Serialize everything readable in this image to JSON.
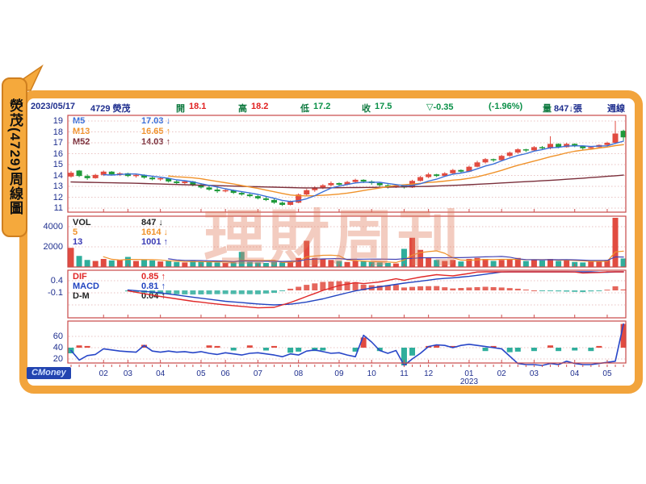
{
  "page_label": "熒茂(4729)周線圖",
  "watermark": "理財周刊",
  "logo": "CMoney",
  "header": {
    "date": "2023/05/17",
    "symbol": "4729 熒茂",
    "items": [
      {
        "label": "開",
        "value": "18.1",
        "vc": "#e02020"
      },
      {
        "label": "高",
        "value": "18.2",
        "vc": "#e02020"
      },
      {
        "label": "低",
        "value": "17.2",
        "vc": "#0a9048"
      },
      {
        "label": "收",
        "value": "17.5",
        "vc": "#0a9048"
      }
    ],
    "change": "▽-0.35",
    "change_pct": "(-1.96%)",
    "volume_label": "量",
    "volume_value": "847↓張",
    "mode": "週線"
  },
  "main_panel": {
    "legend": [
      {
        "name": "M5",
        "value": "17.03 ↓",
        "color": "#3a6fd8"
      },
      {
        "name": "M13",
        "value": "16.65 ↑",
        "color": "#f0922a"
      },
      {
        "name": "M52",
        "value": "14.03 ↑",
        "color": "#7a2e3a"
      }
    ],
    "y_ticks": [
      19,
      18,
      17,
      16,
      15,
      14,
      13,
      12,
      11
    ]
  },
  "volume_panel": {
    "legend": [
      {
        "name": "VOL",
        "value": "847 ↓",
        "color": "#222222"
      },
      {
        "name": "5",
        "value": "1614 ↓",
        "color": "#f0922a"
      },
      {
        "name": "13",
        "value": "1001 ↑",
        "color": "#3a3ab4"
      }
    ],
    "y_ticks": [
      4000,
      2000
    ]
  },
  "macd_panel": {
    "legend": [
      {
        "name": "DIF",
        "value": "0.85 ↑",
        "color": "#e02828"
      },
      {
        "name": "MACD",
        "value": "0.81 ↑",
        "color": "#2244c0"
      },
      {
        "name": "D-M",
        "value": "0.04 ↑",
        "color": "#222222"
      }
    ],
    "y_ticks": [
      0.4,
      -0.1
    ]
  },
  "osc_panel": {
    "y_ticks": [
      60,
      40,
      20
    ]
  },
  "x_axis": {
    "labels": [
      "02",
      "03",
      "04",
      "05",
      "06",
      "07",
      "08",
      "09",
      "10",
      "11",
      "12",
      "01",
      "02",
      "03",
      "04",
      "05"
    ],
    "year_label": "2023",
    "year_under_index": 11
  },
  "colors": {
    "up": "#e14b40",
    "down": "#1f9a3a",
    "teal": "#2fae9c",
    "ma5": "#3a6fd8",
    "ma13": "#f0922a",
    "ma52": "#7a2e3a",
    "vol5": "#f0922a",
    "vol13": "#4444b4",
    "dif": "#e02828",
    "macd": "#2244c0",
    "osc": "#2846c8",
    "border": "#c84848",
    "grid": "#e8c2c2",
    "tick": "#d05050",
    "frame": "#f2a43c"
  },
  "chart_data": {
    "type": "candlestick-multi-panel",
    "title": "4729 熒茂 weekly chart 2022/01 - 2023/05",
    "month_weeks": [
      5,
      8,
      12,
      17,
      20,
      24,
      29,
      34,
      38,
      42,
      45,
      50,
      54,
      58,
      63,
      67
    ],
    "candles": [
      [
        13.9,
        14.4,
        13.8,
        14.25
      ],
      [
        14.45,
        14.5,
        13.85,
        13.95
      ],
      [
        13.95,
        14.1,
        13.6,
        13.75
      ],
      [
        13.75,
        14.15,
        13.7,
        14.05
      ],
      [
        14.05,
        14.45,
        13.95,
        14.35
      ],
      [
        14.35,
        14.4,
        14.0,
        14.1
      ],
      [
        14.1,
        14.3,
        13.95,
        14.2
      ],
      [
        14.2,
        14.25,
        13.85,
        13.95
      ],
      [
        13.95,
        14.15,
        13.8,
        14.05
      ],
      [
        14.05,
        14.1,
        13.7,
        13.8
      ],
      [
        13.8,
        13.95,
        13.55,
        13.65
      ],
      [
        13.65,
        13.85,
        13.5,
        13.75
      ],
      [
        13.75,
        13.8,
        13.35,
        13.45
      ],
      [
        13.45,
        13.6,
        13.2,
        13.3
      ],
      [
        13.3,
        13.55,
        13.2,
        13.45
      ],
      [
        13.45,
        13.5,
        13.0,
        13.1
      ],
      [
        13.1,
        13.3,
        12.8,
        12.9
      ],
      [
        12.9,
        13.05,
        12.6,
        12.7
      ],
      [
        12.7,
        12.9,
        12.4,
        12.55
      ],
      [
        12.55,
        12.8,
        12.45,
        12.65
      ],
      [
        12.65,
        12.7,
        12.3,
        12.4
      ],
      [
        12.4,
        12.55,
        12.15,
        12.25
      ],
      [
        12.25,
        12.4,
        12.0,
        12.1
      ],
      [
        12.1,
        12.2,
        11.8,
        11.9
      ],
      [
        11.9,
        12.05,
        11.65,
        11.75
      ],
      [
        11.75,
        11.85,
        11.4,
        11.5
      ],
      [
        11.5,
        11.6,
        11.2,
        11.3
      ],
      [
        11.3,
        11.7,
        11.25,
        11.6
      ],
      [
        11.5,
        12.35,
        11.45,
        12.25
      ],
      [
        12.25,
        12.75,
        12.1,
        12.65
      ],
      [
        12.65,
        13.0,
        12.5,
        12.9
      ],
      [
        12.9,
        13.2,
        12.75,
        13.1
      ],
      [
        13.1,
        13.45,
        13.0,
        13.3
      ],
      [
        13.3,
        13.35,
        13.0,
        13.15
      ],
      [
        13.15,
        13.5,
        13.1,
        13.4
      ],
      [
        13.4,
        13.7,
        13.3,
        13.6
      ],
      [
        13.6,
        13.65,
        13.3,
        13.45
      ],
      [
        13.45,
        13.55,
        13.15,
        13.3
      ],
      [
        13.3,
        13.4,
        13.0,
        13.1
      ],
      [
        13.1,
        13.2,
        12.8,
        12.9
      ],
      [
        12.9,
        13.15,
        12.85,
        13.05
      ],
      [
        13.05,
        13.1,
        12.8,
        12.9
      ],
      [
        12.9,
        13.6,
        12.85,
        13.5
      ],
      [
        13.5,
        13.95,
        13.45,
        13.85
      ],
      [
        13.85,
        14.25,
        13.75,
        14.1
      ],
      [
        14.1,
        14.15,
        13.85,
        13.95
      ],
      [
        13.95,
        14.3,
        13.9,
        14.2
      ],
      [
        14.2,
        14.6,
        14.1,
        14.5
      ],
      [
        14.5,
        14.55,
        14.25,
        14.35
      ],
      [
        14.35,
        14.9,
        14.3,
        14.8
      ],
      [
        14.8,
        15.35,
        14.75,
        15.2
      ],
      [
        15.2,
        15.6,
        15.1,
        15.5
      ],
      [
        15.5,
        15.55,
        15.25,
        15.4
      ],
      [
        15.4,
        15.9,
        15.35,
        15.8
      ],
      [
        15.8,
        16.2,
        15.7,
        16.1
      ],
      [
        16.1,
        16.5,
        16.0,
        16.4
      ],
      [
        16.4,
        16.45,
        16.15,
        16.3
      ],
      [
        16.3,
        16.7,
        16.2,
        16.6
      ],
      [
        16.6,
        16.7,
        16.35,
        16.5
      ],
      [
        16.5,
        17.6,
        16.4,
        16.9
      ],
      [
        16.9,
        16.95,
        16.5,
        16.6
      ],
      [
        16.6,
        17.0,
        16.55,
        16.9
      ],
      [
        16.9,
        16.95,
        16.6,
        16.7
      ],
      [
        16.7,
        16.75,
        16.35,
        16.5
      ],
      [
        16.5,
        16.7,
        16.4,
        16.6
      ],
      [
        16.6,
        16.85,
        16.5,
        16.8
      ],
      [
        16.8,
        17.1,
        16.7,
        17.0
      ],
      [
        17.0,
        19.0,
        16.9,
        17.85
      ],
      [
        18.1,
        18.2,
        17.2,
        17.5
      ]
    ],
    "volumes": [
      1900,
      1100,
      700,
      600,
      800,
      650,
      700,
      1000,
      600,
      700,
      650,
      550,
      600,
      500,
      450,
      600,
      550,
      500,
      450,
      400,
      450,
      1500,
      500,
      450,
      400,
      500,
      450,
      600,
      900,
      2600,
      900,
      800,
      700,
      600,
      500,
      600,
      550,
      500,
      450,
      400,
      350,
      1800,
      2900,
      1700,
      900,
      700,
      600,
      700,
      550,
      800,
      900,
      800,
      600,
      700,
      800,
      900,
      600,
      700,
      650,
      800,
      600,
      700,
      500,
      450,
      550,
      600,
      700,
      5200,
      847
    ],
    "m52_points": [
      [
        1,
        13.4
      ],
      [
        8,
        13.3
      ],
      [
        15,
        13.15
      ],
      [
        22,
        13.0
      ],
      [
        30,
        12.85
      ],
      [
        38,
        12.9
      ],
      [
        45,
        13.0
      ],
      [
        50,
        13.15
      ],
      [
        55,
        13.35
      ],
      [
        60,
        13.55
      ],
      [
        64,
        13.75
      ],
      [
        69,
        14.03
      ]
    ],
    "dif_points": [
      [
        8,
        -0.02
      ],
      [
        12,
        -0.25
      ],
      [
        16,
        -0.45
      ],
      [
        20,
        -0.6
      ],
      [
        24,
        -0.72
      ],
      [
        26,
        -0.7
      ],
      [
        28,
        -0.5
      ],
      [
        30,
        -0.25
      ],
      [
        32,
        0.0
      ],
      [
        34,
        0.2
      ],
      [
        36,
        0.32
      ],
      [
        37,
        0.28
      ],
      [
        39,
        0.35
      ],
      [
        41,
        0.48
      ],
      [
        42,
        0.42
      ],
      [
        44,
        0.55
      ],
      [
        46,
        0.65
      ],
      [
        48,
        0.6
      ],
      [
        50,
        0.7
      ],
      [
        52,
        0.82
      ],
      [
        54,
        0.88
      ],
      [
        56,
        0.92
      ],
      [
        58,
        0.9
      ],
      [
        60,
        0.86
      ],
      [
        62,
        0.8
      ],
      [
        64,
        0.72
      ],
      [
        66,
        0.74
      ],
      [
        67,
        0.78
      ],
      [
        68,
        0.95
      ],
      [
        69,
        0.85
      ]
    ],
    "macd_points": [
      [
        8,
        0.02
      ],
      [
        12,
        -0.1
      ],
      [
        16,
        -0.28
      ],
      [
        20,
        -0.45
      ],
      [
        24,
        -0.56
      ],
      [
        26,
        -0.6
      ],
      [
        28,
        -0.57
      ],
      [
        30,
        -0.48
      ],
      [
        32,
        -0.35
      ],
      [
        34,
        -0.18
      ],
      [
        36,
        -0.02
      ],
      [
        38,
        0.1
      ],
      [
        40,
        0.2
      ],
      [
        42,
        0.3
      ],
      [
        44,
        0.38
      ],
      [
        46,
        0.47
      ],
      [
        48,
        0.52
      ],
      [
        50,
        0.58
      ],
      [
        52,
        0.67
      ],
      [
        54,
        0.76
      ],
      [
        56,
        0.85
      ],
      [
        58,
        0.9
      ],
      [
        60,
        0.89
      ],
      [
        62,
        0.85
      ],
      [
        64,
        0.79
      ],
      [
        66,
        0.75
      ],
      [
        67,
        0.75
      ],
      [
        68,
        0.78
      ],
      [
        69,
        0.81
      ]
    ],
    "osc_line": [
      35,
      18,
      26,
      28,
      38,
      36,
      34,
      33,
      32,
      44,
      34,
      32,
      34,
      32,
      33,
      31,
      33,
      30,
      28,
      31,
      29,
      27,
      30,
      31,
      29,
      27,
      24,
      29,
      27,
      34,
      36,
      33,
      30,
      31,
      27,
      24,
      62,
      50,
      35,
      30,
      35,
      8,
      20,
      30,
      42,
      45,
      44,
      40,
      44,
      46,
      44,
      42,
      40,
      38,
      25,
      12,
      10,
      10,
      8,
      12,
      10,
      16,
      12,
      10,
      10,
      12,
      14,
      16,
      82
    ],
    "osc_bars": [
      [
        1,
        30,
        "t"
      ],
      [
        2,
        44,
        "r"
      ],
      [
        3,
        43,
        "r"
      ],
      [
        10,
        45,
        "r"
      ],
      [
        18,
        44,
        "r"
      ],
      [
        19,
        43,
        "r"
      ],
      [
        21,
        35,
        "t"
      ],
      [
        23,
        44,
        "r"
      ],
      [
        25,
        35,
        "t"
      ],
      [
        26,
        43,
        "r"
      ],
      [
        28,
        31,
        "t"
      ],
      [
        29,
        33,
        "t"
      ],
      [
        31,
        34,
        "t"
      ],
      [
        32,
        35,
        "t"
      ],
      [
        36,
        33,
        "t"
      ],
      [
        37,
        58,
        "r"
      ],
      [
        39,
        34,
        "t"
      ],
      [
        42,
        6,
        "t"
      ],
      [
        43,
        26,
        "t"
      ],
      [
        45,
        43,
        "r"
      ],
      [
        46,
        44,
        "r"
      ],
      [
        48,
        43,
        "r"
      ],
      [
        52,
        34,
        "t"
      ],
      [
        53,
        43,
        "r"
      ],
      [
        55,
        32,
        "t"
      ],
      [
        56,
        33,
        "t"
      ],
      [
        58,
        34,
        "t"
      ],
      [
        60,
        44,
        "r"
      ],
      [
        61,
        34,
        "t"
      ],
      [
        63,
        35,
        "t"
      ],
      [
        65,
        34,
        "t"
      ],
      [
        66,
        43,
        "r"
      ],
      [
        69,
        82,
        "r"
      ]
    ]
  }
}
